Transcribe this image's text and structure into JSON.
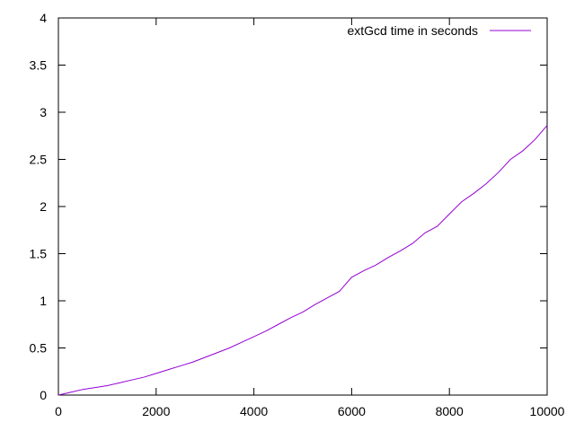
{
  "chart_data": {
    "type": "line",
    "title": "",
    "xlabel": "",
    "ylabel": "",
    "xlim": [
      0,
      10000
    ],
    "ylim": [
      0,
      4
    ],
    "x_ticks": [
      0,
      2000,
      4000,
      6000,
      8000,
      10000
    ],
    "y_ticks": [
      0,
      0.5,
      1,
      1.5,
      2,
      2.5,
      3,
      3.5,
      4
    ],
    "x_tick_labels": [
      "0",
      "2000",
      "4000",
      "6000",
      "8000",
      "10000"
    ],
    "y_tick_labels": [
      "0",
      "0.5",
      "1",
      "1.5",
      "2",
      "2.5",
      "3",
      "3.5",
      "4"
    ],
    "grid": false,
    "legend_position": "top-right",
    "series": [
      {
        "name": "extGcd time in seconds",
        "color": "#9400d3",
        "x": [
          0,
          250,
          500,
          750,
          1000,
          1250,
          1500,
          1750,
          2000,
          2250,
          2500,
          2750,
          3000,
          3250,
          3500,
          3750,
          4000,
          4250,
          4500,
          4750,
          5000,
          5250,
          5500,
          5750,
          6000,
          6250,
          6500,
          6750,
          7000,
          7250,
          7500,
          7750,
          8000,
          8250,
          8500,
          8750,
          9000,
          9250,
          9500,
          9750,
          10000
        ],
        "y": [
          0.0,
          0.03,
          0.06,
          0.08,
          0.1,
          0.13,
          0.16,
          0.19,
          0.23,
          0.27,
          0.31,
          0.35,
          0.4,
          0.45,
          0.5,
          0.56,
          0.62,
          0.68,
          0.75,
          0.82,
          0.88,
          0.96,
          1.03,
          1.1,
          1.25,
          1.32,
          1.38,
          1.46,
          1.53,
          1.61,
          1.72,
          1.79,
          1.92,
          2.05,
          2.14,
          2.24,
          2.36,
          2.5,
          2.59,
          2.71,
          2.86
        ]
      }
    ]
  }
}
